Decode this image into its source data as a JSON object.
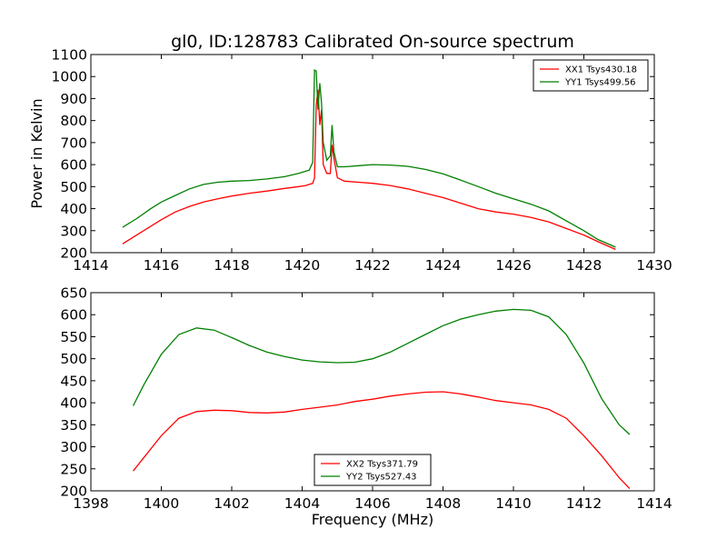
{
  "figure": {
    "title": "gl0, ID:128783 Calibrated On-source spectrum"
  },
  "chart_data": [
    {
      "type": "line",
      "title": "gl0, ID:128783 Calibrated On-source spectrum",
      "xlabel": "",
      "ylabel": "Power in Kelvin",
      "xlim": [
        1414,
        1430
      ],
      "ylim": [
        200,
        1100
      ],
      "xticks": [
        "1414",
        "1416",
        "1418",
        "1420",
        "1422",
        "1424",
        "1426",
        "1428",
        "1430"
      ],
      "yticks": [
        "200",
        "300",
        "400",
        "500",
        "600",
        "700",
        "800",
        "900",
        "1000",
        "1100"
      ],
      "legend_position": "top-right",
      "series": [
        {
          "name": "XX1 Tsys430.18",
          "color": "#ff0000",
          "x": [
            1414.9,
            1415.3,
            1415.7,
            1416.0,
            1416.4,
            1416.8,
            1417.2,
            1417.6,
            1418.0,
            1418.5,
            1419.0,
            1419.5,
            1419.9,
            1420.1,
            1420.2,
            1420.3,
            1420.35,
            1420.4,
            1420.45,
            1420.5,
            1420.55,
            1420.6,
            1420.7,
            1420.8,
            1420.85,
            1420.9,
            1421.0,
            1421.2,
            1421.6,
            1422.0,
            1422.5,
            1423.0,
            1423.5,
            1424.0,
            1424.5,
            1425.0,
            1425.5,
            1426.0,
            1426.5,
            1427.0,
            1427.5,
            1428.0,
            1428.4,
            1428.9
          ],
          "y": [
            240,
            280,
            320,
            350,
            385,
            410,
            430,
            445,
            457,
            470,
            480,
            492,
            500,
            505,
            510,
            515,
            540,
            870,
            940,
            780,
            850,
            600,
            560,
            560,
            690,
            630,
            540,
            525,
            520,
            515,
            505,
            490,
            470,
            450,
            425,
            400,
            385,
            375,
            360,
            340,
            310,
            280,
            250,
            215
          ]
        },
        {
          "name": "YY1 Tsys499.56",
          "color": "#008000",
          "x": [
            1414.9,
            1415.3,
            1415.7,
            1416.0,
            1416.4,
            1416.8,
            1417.2,
            1417.6,
            1418.0,
            1418.5,
            1419.0,
            1419.5,
            1419.9,
            1420.1,
            1420.2,
            1420.3,
            1420.35,
            1420.4,
            1420.45,
            1420.5,
            1420.55,
            1420.6,
            1420.7,
            1420.8,
            1420.85,
            1420.9,
            1421.0,
            1421.2,
            1421.6,
            1422.0,
            1422.5,
            1423.0,
            1423.5,
            1424.0,
            1424.5,
            1425.0,
            1425.5,
            1426.0,
            1426.5,
            1427.0,
            1427.5,
            1428.0,
            1428.4,
            1428.9
          ],
          "y": [
            315,
            355,
            400,
            430,
            460,
            490,
            510,
            520,
            525,
            528,
            535,
            545,
            560,
            570,
            575,
            610,
            1030,
            1025,
            850,
            970,
            880,
            700,
            620,
            640,
            780,
            660,
            590,
            590,
            595,
            600,
            598,
            592,
            578,
            558,
            530,
            500,
            470,
            445,
            420,
            390,
            345,
            300,
            260,
            225
          ]
        }
      ]
    },
    {
      "type": "line",
      "title": "",
      "xlabel": "Frequency (MHz)",
      "ylabel": "",
      "xlim": [
        1398,
        1414
      ],
      "ylim": [
        200,
        650
      ],
      "xticks": [
        "1398",
        "1400",
        "1402",
        "1404",
        "1406",
        "1408",
        "1410",
        "1412",
        "1414"
      ],
      "yticks": [
        "200",
        "250",
        "300",
        "350",
        "400",
        "450",
        "500",
        "550",
        "600",
        "650"
      ],
      "legend_position": "bottom-center",
      "series": [
        {
          "name": "XX2 Tsys371.79",
          "color": "#ff0000",
          "x": [
            1399.2,
            1399.5,
            1400.0,
            1400.5,
            1401.0,
            1401.5,
            1402.0,
            1402.5,
            1403.0,
            1403.5,
            1404.0,
            1404.5,
            1405.0,
            1405.5,
            1406.0,
            1406.5,
            1407.0,
            1407.5,
            1408.0,
            1408.5,
            1409.0,
            1409.5,
            1410.0,
            1410.5,
            1411.0,
            1411.5,
            1412.0,
            1412.5,
            1413.0,
            1413.3
          ],
          "y": [
            245,
            275,
            325,
            365,
            380,
            383,
            382,
            378,
            377,
            379,
            385,
            390,
            395,
            403,
            408,
            415,
            420,
            424,
            425,
            420,
            413,
            405,
            400,
            395,
            385,
            365,
            325,
            280,
            230,
            205
          ]
        },
        {
          "name": "YY2 Tsys527.43",
          "color": "#008000",
          "x": [
            1399.2,
            1399.5,
            1400.0,
            1400.5,
            1401.0,
            1401.5,
            1402.0,
            1402.5,
            1403.0,
            1403.5,
            1404.0,
            1404.5,
            1405.0,
            1405.5,
            1406.0,
            1406.5,
            1407.0,
            1407.5,
            1408.0,
            1408.5,
            1409.0,
            1409.5,
            1410.0,
            1410.5,
            1411.0,
            1411.5,
            1412.0,
            1412.5,
            1413.0,
            1413.3
          ],
          "y": [
            393,
            440,
            510,
            555,
            570,
            565,
            548,
            530,
            515,
            505,
            497,
            493,
            491,
            492,
            500,
            515,
            535,
            555,
            575,
            590,
            600,
            608,
            612,
            610,
            595,
            555,
            490,
            410,
            350,
            328
          ]
        }
      ]
    }
  ]
}
